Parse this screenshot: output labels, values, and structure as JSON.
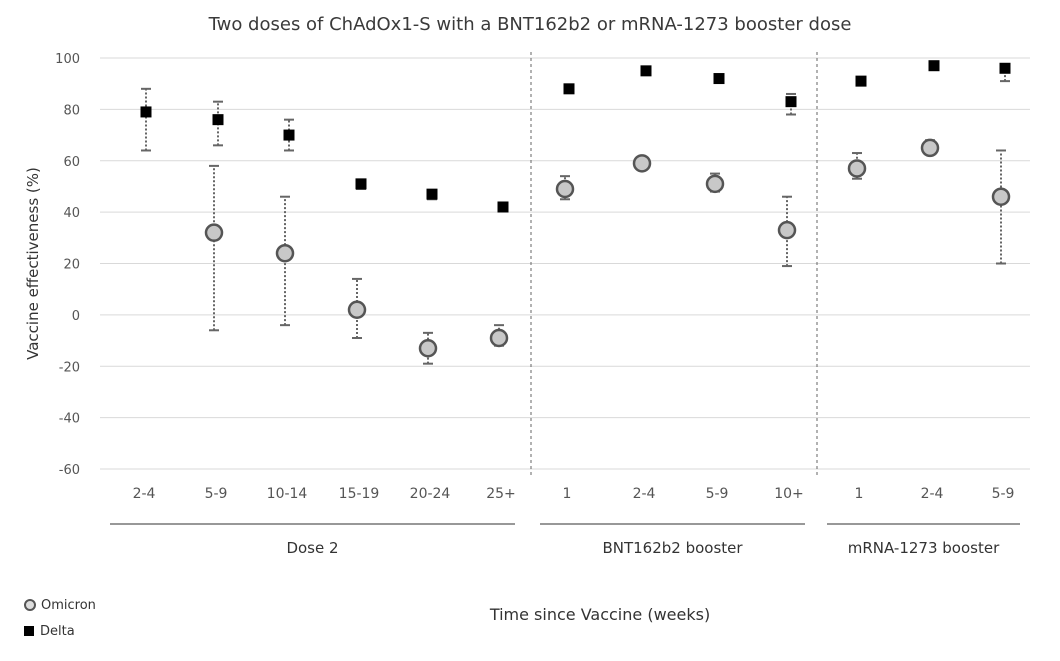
{
  "chart_data": {
    "type": "scatter",
    "title": "Two doses of ChAdOx1-S with a BNT162b2 or mRNA-1273 booster dose",
    "xlabel": "Time since Vaccine (weeks)",
    "ylabel": "Vaccine effectiveness (%)",
    "ylim": [
      -60,
      100
    ],
    "yticks": [
      100,
      80,
      60,
      40,
      20,
      0,
      -20,
      -40,
      -60
    ],
    "grid": true,
    "legend_position": "bottom-left",
    "categories": [
      "2-4",
      "5-9",
      "10-14",
      "15-19",
      "20-24",
      "25+",
      "1",
      "2-4",
      "5-9",
      "10+",
      "1",
      "2-4",
      "5-9"
    ],
    "groups": [
      {
        "label": "Dose 2",
        "count": 6
      },
      {
        "label": "BNT162b2 booster",
        "count": 4
      },
      {
        "label": "mRNA-1273 booster",
        "count": 3
      }
    ],
    "series": [
      {
        "name": "Omicron",
        "marker": "circle",
        "color": "#c8c8c8",
        "values": [
          null,
          32,
          24,
          2,
          -13,
          -9,
          49,
          59,
          51,
          33,
          57,
          65,
          46
        ],
        "lower": [
          null,
          -6,
          -4,
          -9,
          -19,
          -12,
          45,
          57,
          48,
          19,
          53,
          63,
          20
        ],
        "upper": [
          null,
          58,
          46,
          14,
          -7,
          -4,
          54,
          61,
          55,
          46,
          63,
          68,
          64
        ]
      },
      {
        "name": "Delta",
        "marker": "square",
        "color": "#000000",
        "values": [
          79,
          76,
          70,
          51,
          47,
          42,
          88,
          95,
          92,
          83,
          91,
          97,
          96
        ],
        "lower": [
          64,
          66,
          64,
          49,
          45,
          41,
          87,
          94,
          91,
          78,
          90,
          96,
          91
        ],
        "upper": [
          88,
          83,
          76,
          52,
          48,
          43,
          89,
          96,
          93,
          86,
          92,
          98,
          97
        ]
      }
    ]
  }
}
